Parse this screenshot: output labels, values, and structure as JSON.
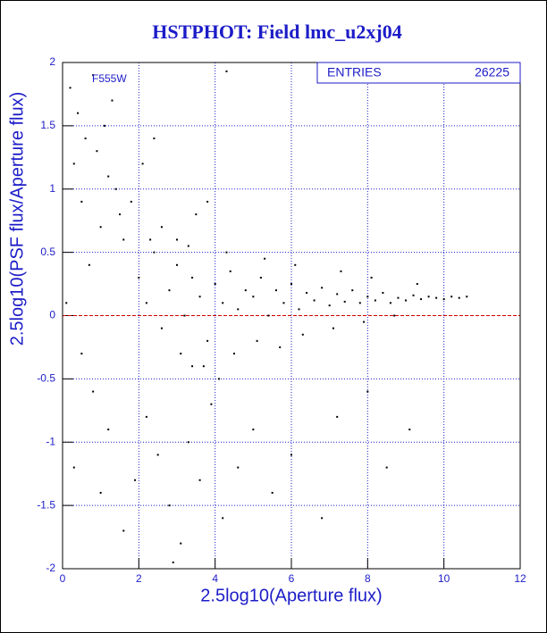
{
  "chart_data": {
    "type": "scatter",
    "title": "HSTPHOT: Field lmc_u2xj04",
    "x_label": "2.5log10(Aperture flux)",
    "y_label": "2.5log10(PSF flux/Aperture flux)",
    "annotation": "F555W",
    "stats": {
      "label": "ENTRIES",
      "value": 26225
    },
    "reference_line": {
      "y": 0,
      "color": "#d00000"
    },
    "color": "#000000",
    "grid": true,
    "grid_color": "#1c1cc8",
    "xlim": [
      0,
      12
    ],
    "xticks": [
      0,
      2,
      4,
      6,
      8,
      10,
      12
    ],
    "ylim": [
      -2,
      2
    ],
    "yticks": [
      -2,
      -1.5,
      -1,
      -0.5,
      0,
      0.5,
      1,
      1.5,
      2
    ],
    "x": [
      0.2,
      0.4,
      0.3,
      0.6,
      0.8,
      0.5,
      0.9,
      1.1,
      1.2,
      1.4,
      1.0,
      1.3,
      0.7,
      1.5,
      1.6,
      1.8,
      2.1,
      2.4,
      2.6,
      3.0,
      3.5,
      3.8,
      4.3,
      0.1,
      0.5,
      0.8,
      1.2,
      0.3,
      1.0,
      1.6,
      1.9,
      2.2,
      2.5,
      2.8,
      3.1,
      3.3,
      3.6,
      3.9,
      4.2,
      4.6,
      5.0,
      5.5,
      6.0,
      6.8,
      7.2,
      8.0,
      8.5,
      9.1,
      2.9,
      3.4,
      4.1,
      2.0,
      2.2,
      2.4,
      2.6,
      2.8,
      3.0,
      3.2,
      3.4,
      3.6,
      3.8,
      4.0,
      4.2,
      4.4,
      4.6,
      4.8,
      5.0,
      5.2,
      5.4,
      5.6,
      5.8,
      6.0,
      6.2,
      6.4,
      6.6,
      6.8,
      7.0,
      7.2,
      7.4,
      7.6,
      7.8,
      8.0,
      8.2,
      8.4,
      8.6,
      8.8,
      9.0,
      9.2,
      9.4,
      9.6,
      9.8,
      10.0,
      10.2,
      10.4,
      10.6,
      3.1,
      3.7,
      4.5,
      5.1,
      5.7,
      6.3,
      7.1,
      7.9,
      8.7,
      2.3,
      3.3,
      4.3,
      5.3,
      6.1,
      7.3,
      8.1,
      9.3
    ],
    "values": [
      1.8,
      1.6,
      1.2,
      1.4,
      1.9,
      0.9,
      1.3,
      1.5,
      1.1,
      1.0,
      0.7,
      1.7,
      0.4,
      0.8,
      0.6,
      0.9,
      1.2,
      1.4,
      0.7,
      0.6,
      0.8,
      0.9,
      1.93,
      0.1,
      -0.3,
      -0.6,
      -0.9,
      -1.2,
      -1.4,
      -1.7,
      -1.3,
      -0.8,
      -1.1,
      -1.5,
      -1.8,
      -1.0,
      -1.3,
      -0.7,
      -1.6,
      -1.2,
      -0.9,
      -1.4,
      -1.1,
      -1.6,
      -0.8,
      -0.6,
      -1.2,
      -0.9,
      -1.95,
      -0.4,
      -0.5,
      0.3,
      0.1,
      0.5,
      -0.1,
      0.2,
      0.4,
      0.0,
      0.3,
      0.15,
      -0.2,
      0.25,
      0.1,
      0.35,
      0.05,
      0.2,
      0.15,
      0.3,
      0.0,
      0.2,
      0.1,
      0.25,
      0.05,
      0.18,
      0.12,
      0.22,
      0.08,
      0.17,
      0.11,
      0.2,
      0.1,
      0.15,
      0.12,
      0.18,
      0.1,
      0.14,
      0.12,
      0.16,
      0.13,
      0.15,
      0.14,
      0.13,
      0.15,
      0.14,
      0.15,
      -0.3,
      -0.4,
      -0.3,
      -0.2,
      -0.25,
      -0.15,
      -0.1,
      -0.05,
      0.0,
      0.6,
      0.55,
      0.5,
      0.45,
      0.4,
      0.35,
      0.3,
      0.25
    ]
  }
}
